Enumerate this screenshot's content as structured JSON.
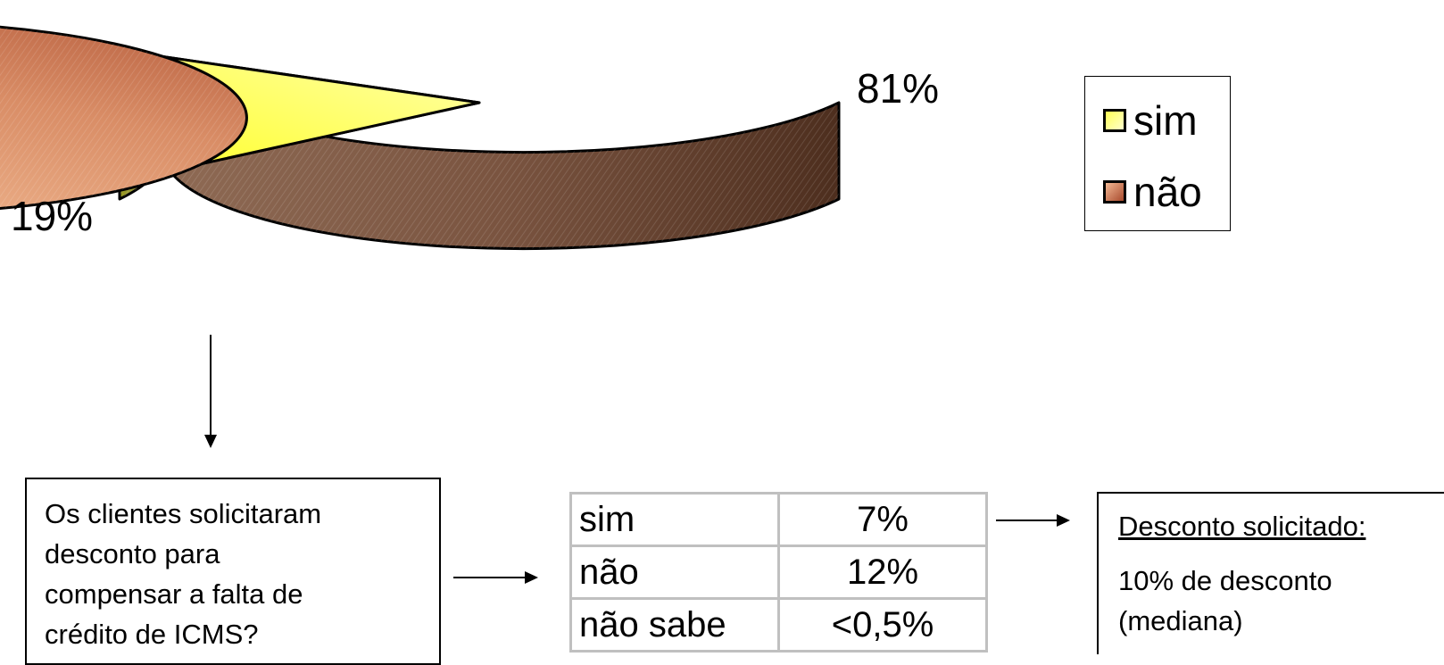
{
  "chart_data": {
    "type": "pie",
    "style": "3d",
    "categories": [
      "sim",
      "não"
    ],
    "values": [
      19,
      81
    ],
    "data_labels": [
      "19%",
      "81%"
    ],
    "legend": {
      "position": "right",
      "entries": [
        "sim",
        "não"
      ]
    },
    "colors": {
      "sim": "#ffff66",
      "não": "#c8724f"
    }
  },
  "question": {
    "lines": [
      "Os clientes solicitaram",
      "desconto para",
      "compensar a falta de",
      "crédito de ICMS?"
    ]
  },
  "answers": [
    {
      "answer": "sim",
      "value": "7%"
    },
    {
      "answer": "não",
      "value": "12%"
    },
    {
      "answer": "não sabe",
      "value": "<0,5%"
    }
  ],
  "result": {
    "title": "Desconto solicitado:",
    "lines": [
      "10% de desconto",
      "(mediana)"
    ]
  }
}
